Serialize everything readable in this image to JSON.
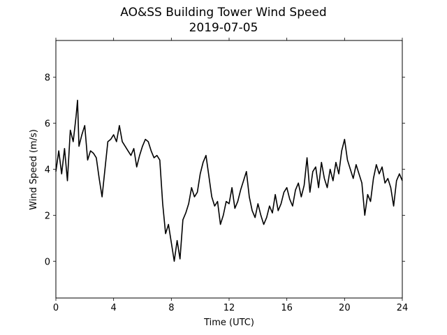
{
  "chart_data": {
    "type": "line",
    "title": "AO&SS Building Tower Wind Speed",
    "subtitle": "2019-07-05",
    "xlabel": "Time (UTC)",
    "ylabel": "Wind Speed (m/s)",
    "x": [
      0,
      0.2,
      0.4,
      0.6,
      0.8,
      1,
      1.2,
      1.4,
      1.5,
      1.6,
      1.8,
      2,
      2.2,
      2.4,
      2.6,
      2.8,
      3,
      3.2,
      3.4,
      3.6,
      3.8,
      4,
      4.2,
      4.4,
      4.6,
      4.8,
      5,
      5.2,
      5.4,
      5.6,
      5.8,
      6,
      6.2,
      6.4,
      6.6,
      6.8,
      7,
      7.2,
      7.4,
      7.6,
      7.8,
      8,
      8.2,
      8.4,
      8.6,
      8.8,
      9,
      9.2,
      9.4,
      9.6,
      9.8,
      10,
      10.2,
      10.4,
      10.6,
      10.8,
      11,
      11.2,
      11.4,
      11.6,
      11.8,
      12,
      12.2,
      12.4,
      12.6,
      12.8,
      13,
      13.2,
      13.4,
      13.6,
      13.8,
      14,
      14.2,
      14.4,
      14.6,
      14.8,
      15,
      15.2,
      15.4,
      15.6,
      15.8,
      16,
      16.2,
      16.4,
      16.6,
      16.8,
      17,
      17.2,
      17.4,
      17.6,
      17.8,
      18,
      18.2,
      18.4,
      18.6,
      18.8,
      19,
      19.2,
      19.4,
      19.6,
      19.8,
      20,
      20.2,
      20.4,
      20.6,
      20.8,
      21,
      21.2,
      21.4,
      21.6,
      21.8,
      22,
      22.2,
      22.4,
      22.6,
      22.8,
      23,
      23.2,
      23.4,
      23.6,
      23.8,
      24
    ],
    "series": [
      {
        "name": "Wind Speed",
        "color": "#000000",
        "values": [
          3.9,
          4.8,
          3.8,
          4.9,
          3.5,
          5.7,
          5.2,
          6.3,
          7.0,
          5.0,
          5.5,
          5.9,
          4.4,
          4.8,
          4.7,
          4.5,
          3.6,
          2.8,
          4.0,
          5.2,
          5.3,
          5.5,
          5.2,
          5.9,
          5.2,
          5.0,
          4.8,
          4.6,
          4.9,
          4.1,
          4.6,
          5.0,
          5.3,
          5.2,
          4.8,
          4.5,
          4.6,
          4.4,
          2.5,
          1.2,
          1.6,
          0.8,
          0.0,
          0.9,
          0.1,
          1.8,
          2.1,
          2.5,
          3.2,
          2.8,
          3.0,
          3.8,
          4.3,
          4.6,
          3.7,
          2.8,
          2.4,
          2.6,
          1.6,
          2.0,
          2.6,
          2.5,
          3.2,
          2.3,
          2.6,
          3.1,
          3.5,
          3.9,
          2.8,
          2.2,
          1.9,
          2.5,
          2.0,
          1.6,
          1.9,
          2.4,
          2.1,
          2.9,
          2.2,
          2.5,
          3.0,
          3.2,
          2.7,
          2.4,
          3.1,
          3.4,
          2.8,
          3.3,
          4.5,
          3.0,
          3.9,
          4.1,
          3.2,
          4.3,
          3.6,
          3.2,
          4.0,
          3.5,
          4.3,
          3.8,
          4.8,
          5.3,
          4.4,
          4.0,
          3.6,
          4.2,
          3.8,
          3.4,
          2.0,
          2.9,
          2.6,
          3.6,
          4.2,
          3.8,
          4.1,
          3.4,
          3.6,
          3.2,
          2.4,
          3.5,
          3.8,
          3.5
        ]
      }
    ],
    "xlim": [
      0,
      24
    ],
    "xticks": [
      0,
      4,
      8,
      12,
      16,
      20,
      24
    ],
    "ylim": [
      -1.6,
      9.6
    ],
    "yticks": [
      0,
      2,
      4,
      6,
      8
    ],
    "grid": false
  }
}
